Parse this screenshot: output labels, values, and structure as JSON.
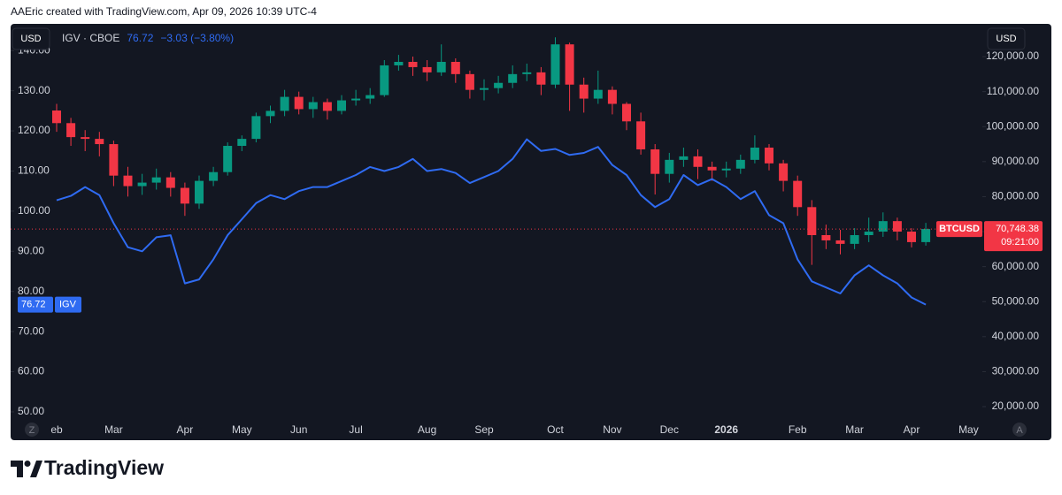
{
  "header": {
    "attribution": "AAEric created with TradingView.com, Apr 09, 2026 10:39 UTC-4"
  },
  "chart_data": {
    "type": "candlestick",
    "legend": {
      "name": "IGV · CBOE",
      "change": "−3.03 (−3.80%)"
    },
    "currency_left": "USD",
    "currency_right": "USD",
    "scale_buttons": [
      "Z",
      "A"
    ],
    "categories": [
      "eb",
      null,
      null,
      null,
      "Mar",
      null,
      null,
      null,
      null,
      "Apr",
      null,
      null,
      null,
      "May",
      null,
      null,
      null,
      "Jun",
      null,
      null,
      null,
      "Jul",
      null,
      null,
      null,
      null,
      "Aug",
      null,
      null,
      null,
      "Sep",
      null,
      null,
      null,
      null,
      "Oct",
      null,
      null,
      null,
      "Nov",
      null,
      null,
      null,
      "Dec",
      null,
      null,
      null,
      "2026",
      null,
      null,
      null,
      null,
      "Feb",
      null,
      null,
      null,
      "Mar",
      null,
      null,
      null,
      "Apr",
      null,
      null,
      null,
      "May"
    ],
    "ylim": [
      46.9,
      146
    ],
    "yticks": [
      {
        "value": 50,
        "label": "50.00"
      },
      {
        "value": 60,
        "label": "60.00"
      },
      {
        "value": 70,
        "label": "70.00"
      },
      {
        "value": 80,
        "label": "80.00"
      },
      {
        "value": 90,
        "label": "90.00"
      },
      {
        "value": 100,
        "label": "100.00"
      },
      {
        "value": 110,
        "label": "110.00"
      },
      {
        "value": 120,
        "label": "120.00"
      },
      {
        "value": 130,
        "label": "130.00"
      },
      {
        "value": 140,
        "label": "140.00"
      }
    ],
    "y2lim": [
      14950,
      128600
    ],
    "y2ticks": [
      {
        "value": 20000,
        "label": "20,000.00"
      },
      {
        "value": 30000,
        "label": "30,000.00"
      },
      {
        "value": 40000,
        "label": "40,000.00"
      },
      {
        "value": 50000,
        "label": "50,000.00"
      },
      {
        "value": 60000,
        "label": "60,000.00"
      },
      {
        "value": 70000,
        "label": "70,000.00"
      },
      {
        "value": 80000,
        "label": "80,000.00"
      },
      {
        "value": 90000,
        "label": "90,000.00"
      },
      {
        "value": 100000,
        "label": "100,000.00"
      },
      {
        "value": 110000,
        "label": "110,000.00"
      },
      {
        "value": 120000,
        "label": "120,000.00"
      }
    ],
    "series": [
      {
        "name": "IGV",
        "type": "line",
        "color": "#2f6bf2",
        "values": [
          102.7,
          103.8,
          106,
          104,
          97,
          91,
          90,
          93.5,
          94,
          82,
          83,
          88,
          94,
          98,
          102,
          104,
          103,
          105,
          106,
          106,
          107.5,
          109,
          111,
          110,
          111,
          113,
          110,
          110.5,
          109.5,
          107,
          108.5,
          110,
          113,
          117.9,
          115,
          115.5,
          114,
          114.5,
          116,
          111.5,
          109,
          104,
          101,
          103,
          109,
          106.5,
          108,
          106,
          103,
          105,
          99,
          97,
          88,
          82.5,
          81,
          79.5,
          84,
          86.5,
          84,
          82,
          78.5,
          76.72,
          null,
          null,
          null
        ]
      },
      {
        "name": "BTCUSD",
        "type": "candlestick",
        "axis": "y2",
        "up_color": "#089981",
        "down_color": "#f23645",
        "last_price_label": "70,748.38",
        "countdown": "09:21:00",
        "open": [
          104600,
          101000,
          97000,
          96500,
          95000,
          86000,
          83000,
          84000,
          85500,
          82500,
          78000,
          84500,
          87000,
          94500,
          96500,
          103000,
          104500,
          108500,
          105000,
          107000,
          104500,
          107500,
          108000,
          109000,
          117500,
          118500,
          117000,
          115500,
          118500,
          115000,
          110500,
          111000,
          112500,
          115000,
          115500,
          112000,
          123500,
          112000,
          108000,
          110500,
          106500,
          101500,
          93500,
          86500,
          90500,
          91500,
          88500,
          87500,
          88000,
          90500,
          94000,
          89500,
          84500,
          77000,
          69000,
          67500,
          66500,
          69000,
          70000,
          73000,
          70000,
          67000,
          null,
          null,
          null
        ],
        "high": [
          106500,
          102500,
          99000,
          98500,
          96000,
          88500,
          86500,
          88000,
          87000,
          84000,
          86000,
          88500,
          95500,
          97500,
          104000,
          106000,
          110500,
          110000,
          108500,
          108000,
          109000,
          110500,
          111000,
          119000,
          120500,
          120000,
          119000,
          123500,
          119500,
          116000,
          113500,
          114500,
          117500,
          118000,
          117000,
          125500,
          124000,
          114000,
          116000,
          111500,
          107000,
          104000,
          95000,
          92500,
          94000,
          93500,
          90000,
          90000,
          92000,
          97500,
          95000,
          90500,
          86000,
          79000,
          72000,
          70500,
          71000,
          74000,
          75500,
          74000,
          71000,
          72500,
          null,
          null,
          null
        ],
        "low": [
          98500,
          94500,
          93000,
          91500,
          83000,
          80000,
          80500,
          82000,
          80000,
          74500,
          76500,
          83000,
          86000,
          93000,
          95500,
          101000,
          103000,
          103500,
          102500,
          102000,
          103500,
          106000,
          106500,
          108500,
          116000,
          114500,
          113000,
          114500,
          112500,
          108000,
          107500,
          109500,
          111000,
          113000,
          109000,
          111000,
          104500,
          104000,
          106500,
          103500,
          99000,
          92000,
          80600,
          84000,
          88500,
          85000,
          84500,
          85500,
          86500,
          89500,
          87500,
          81500,
          74500,
          60500,
          65000,
          63500,
          65000,
          67000,
          68500,
          67500,
          65500,
          66000,
          null,
          null,
          null
        ],
        "close": [
          101000,
          97000,
          96500,
          95000,
          86000,
          83000,
          84000,
          85500,
          82500,
          78000,
          84500,
          87000,
          94500,
          96500,
          103000,
          104500,
          108500,
          105000,
          107000,
          104500,
          107500,
          108000,
          109000,
          117500,
          118500,
          117000,
          115500,
          118500,
          115000,
          110500,
          111000,
          112500,
          115000,
          115500,
          112000,
          123500,
          112000,
          108000,
          110500,
          106500,
          101500,
          93500,
          86500,
          90500,
          91500,
          88500,
          87500,
          88000,
          90500,
          94000,
          89500,
          84500,
          77000,
          69000,
          67500,
          66500,
          69000,
          70000,
          73000,
          70000,
          67000,
          70748.38,
          null,
          null,
          null
        ]
      }
    ]
  },
  "footer": {
    "logo": "TradingView"
  }
}
